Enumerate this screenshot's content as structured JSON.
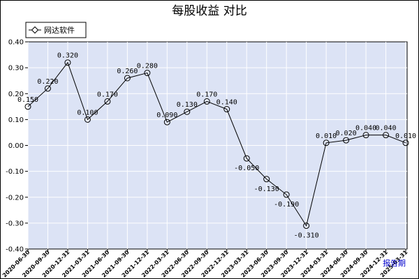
{
  "chart_data": {
    "type": "line",
    "title": "每股收益  对比",
    "xlabel": "",
    "ylabel": "",
    "ylim": [
      -0.4,
      0.4
    ],
    "yticks": [
      "0.40",
      "0.30",
      "0.20",
      "0.10",
      "0.00",
      "-0.10",
      "-0.20",
      "-0.30",
      "-0.40"
    ],
    "grid": true,
    "legend_placement": "top-left",
    "corner_label": "报告期",
    "categories": [
      "2020-06-30",
      "2020-09-30",
      "2020-12-31",
      "2021-03-31",
      "2021-06-30",
      "2021-09-30",
      "2021-12-31",
      "2022-03-31",
      "2022-06-30",
      "2022-09-30",
      "2022-12-31",
      "2023-03-31",
      "2023-06-30",
      "2023-09-30",
      "2023-12-31",
      "2024-03-31",
      "2024-06-30",
      "2024-09-30",
      "2024-12-31",
      "2025-03-31"
    ],
    "series": [
      {
        "name": "网达软件",
        "values": [
          0.15,
          0.22,
          0.32,
          0.1,
          0.17,
          0.26,
          0.28,
          0.09,
          0.13,
          0.17,
          0.14,
          -0.05,
          -0.13,
          -0.19,
          -0.31,
          0.01,
          0.02,
          0.04,
          0.04,
          0.01
        ],
        "labels": [
          "0.150",
          "0.220",
          "0.320",
          "0.100",
          "0.170",
          "0.260",
          "0.280",
          "0.090",
          "0.130",
          "0.170",
          "0.140",
          "-0.050",
          "-0.130",
          "-0.190",
          "-0.310",
          "0.010",
          "0.020",
          "0.040",
          "0.040",
          "0.010"
        ],
        "color": "#000000"
      }
    ],
    "colors": {
      "plot_bg": "#dce3f5",
      "grid": "#ffffff",
      "line": "#000000",
      "corner_label": "#0000cc"
    }
  }
}
